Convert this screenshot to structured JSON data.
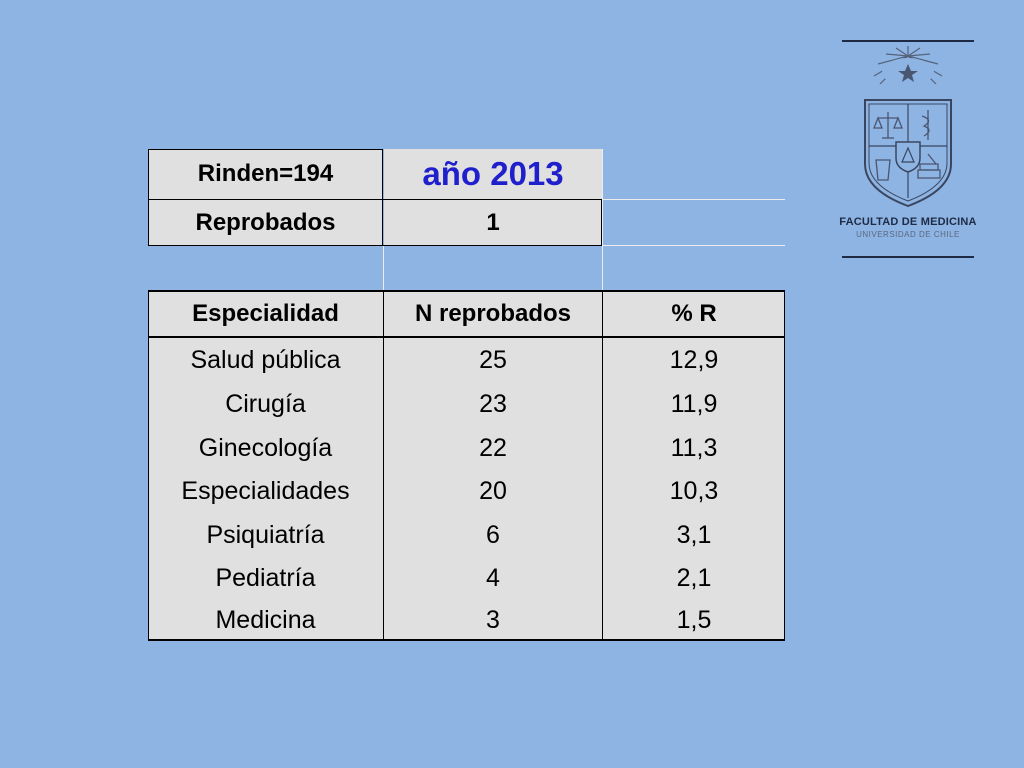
{
  "header": {
    "rinden": "Rinden=194",
    "year": "año 2013",
    "reprobados_label": "Reprobados",
    "reprobados_value": "1"
  },
  "table": {
    "columns": [
      "Especialidad",
      "N reprobados",
      "% R"
    ],
    "rows": [
      {
        "especialidad": "Salud pública",
        "n": "25",
        "pct": "12,9"
      },
      {
        "especialidad": "Cirugía",
        "n": "23",
        "pct": "11,9"
      },
      {
        "especialidad": "Ginecología",
        "n": "22",
        "pct": "11,3"
      },
      {
        "especialidad": "Especialidades",
        "n": "20",
        "pct": "10,3"
      },
      {
        "especialidad": "Psiquiatría",
        "n": "6",
        "pct": "3,1"
      },
      {
        "especialidad": "Pediatría",
        "n": "4",
        "pct": "2,1"
      },
      {
        "especialidad": "Medicina",
        "n": "3",
        "pct": "1,5"
      }
    ]
  },
  "logo": {
    "title": "FACULTAD DE MEDICINA",
    "subtitle": "UNIVERSIDAD DE CHILE",
    "icon": "university-crest-icon"
  },
  "colors": {
    "background": "#8eb4e3",
    "cell": "#e0e0e0",
    "year_text": "#1f1fcc",
    "logo_text": "#1f2a44"
  }
}
